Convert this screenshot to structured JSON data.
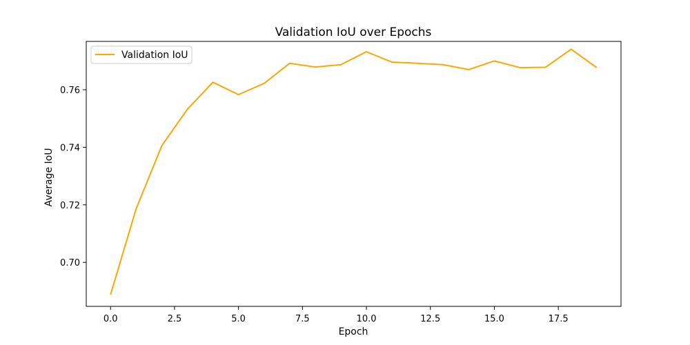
{
  "chart_data": {
    "type": "line",
    "title": "Validation IoU over Epochs",
    "xlabel": "Epoch",
    "ylabel": "Average IoU",
    "xlim": [
      -0.95,
      19.95
    ],
    "ylim": [
      0.6847,
      0.7768
    ],
    "xticks": [
      0,
      2.5,
      5,
      7.5,
      10,
      12.5,
      15,
      17.5
    ],
    "xtick_labels": [
      "0.0",
      "2.5",
      "5.0",
      "7.5",
      "10.0",
      "12.5",
      "15.0",
      "17.5"
    ],
    "yticks": [
      0.7,
      0.72,
      0.74,
      0.76
    ],
    "ytick_labels": [
      "0.70",
      "0.72",
      "0.74",
      "0.76"
    ],
    "grid": false,
    "legend_position": "upper-left",
    "series": [
      {
        "name": "Validation IoU",
        "color": "#ffa500",
        "x": [
          0,
          1,
          2,
          3,
          4,
          5,
          6,
          7,
          8,
          9,
          10,
          11,
          12,
          13,
          14,
          15,
          16,
          17,
          18,
          19
        ],
        "y": [
          0.6888,
          0.7186,
          0.7405,
          0.7532,
          0.7626,
          0.7583,
          0.7622,
          0.7692,
          0.7679,
          0.7687,
          0.7732,
          0.7696,
          0.7692,
          0.7687,
          0.767,
          0.77,
          0.7677,
          0.7678,
          0.7741,
          0.7677
        ]
      }
    ]
  }
}
